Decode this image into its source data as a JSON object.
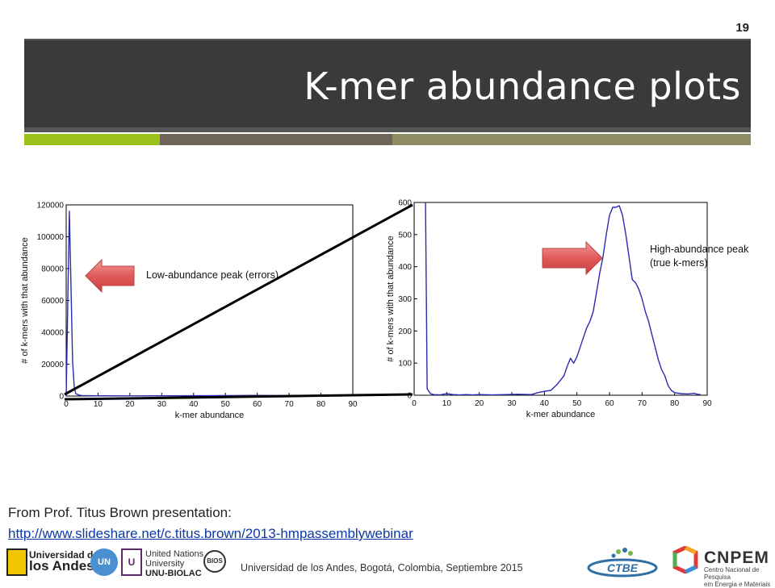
{
  "slide": {
    "page_number": "19",
    "title": "K-mer abundance plots",
    "colors": {
      "title_bar": "#3a3a3a",
      "band_green": "#9ac21a",
      "band_brown": "#6e6457",
      "band_olive": "#8c8c60",
      "accent_blue": "#2b2bb0",
      "arrow_red": "#e05a5a"
    }
  },
  "annotations": {
    "low_peak": "Low-abundance peak (errors)",
    "high_peak_line1": "High-abundance peak",
    "high_peak_line2": "(true k-mers)"
  },
  "credit": {
    "text": "From Prof. Titus Brown presentation:",
    "link": "http://www.slideshare.net/c.titus.brown/2013-hmpassemblywebinar"
  },
  "footer": {
    "text": "Universidad de los Andes, Bogotá, Colombia, Septiembre 2015",
    "logos": {
      "uandes_line1": "Universidad de",
      "uandes_line2": "los Andes",
      "un": "UN",
      "unu_mark": "U",
      "unu_line1": "United Nations",
      "unu_line2": "University",
      "unu_line3": "UNU-BIOLAC",
      "bios": "BIOS",
      "ctbe": "CTBE",
      "cnpem": "CNPEM",
      "cnpem_sub1": "Centro Nacional de Pesquisa",
      "cnpem_sub2": "em Energia e Materiais"
    }
  },
  "chart_data": [
    {
      "type": "line",
      "xlabel": "k-mer abundance",
      "ylabel": "# of k-mers with that abundance",
      "xlim": [
        0,
        90
      ],
      "ylim": [
        0,
        120000
      ],
      "xticks": [
        "0",
        "10",
        "20",
        "30",
        "40",
        "50",
        "60",
        "70",
        "80",
        "90"
      ],
      "yticks": [
        "0",
        "20000",
        "40000",
        "60000",
        "80000",
        "100000",
        "120000"
      ],
      "series": [
        {
          "x": [
            0,
            0.5,
            1,
            1.5,
            2,
            2.5,
            3,
            4,
            5,
            10,
            20,
            40,
            60,
            88
          ],
          "y": [
            0,
            60000,
            116000,
            70000,
            22000,
            6000,
            1500,
            600,
            300,
            150,
            100,
            200,
            400,
            100
          ]
        }
      ]
    },
    {
      "type": "line",
      "xlabel": "k-mer abundance",
      "ylabel": "# of k-mers with that abundance",
      "xlim": [
        0,
        90
      ],
      "ylim": [
        0,
        600
      ],
      "xticks": [
        "0",
        "10",
        "20",
        "30",
        "40",
        "50",
        "60",
        "70",
        "80",
        "90"
      ],
      "yticks": [
        "0",
        "100",
        "200",
        "300",
        "400",
        "500",
        "600"
      ],
      "series": [
        {
          "x": [
            3.5,
            4,
            5,
            6,
            8,
            10,
            12,
            14,
            16,
            18,
            20,
            24,
            28,
            32,
            36,
            38,
            40,
            42,
            44,
            46,
            47,
            48,
            49,
            50,
            51,
            52,
            53,
            54,
            55,
            56,
            57,
            58,
            59,
            60,
            61,
            62,
            63,
            64,
            65,
            66,
            67,
            68,
            69,
            70,
            71,
            72,
            73,
            74,
            75,
            76,
            77,
            78,
            79,
            80,
            82,
            84,
            86,
            87,
            88
          ],
          "y": [
            600,
            20,
            5,
            2,
            1,
            5,
            2,
            1,
            2,
            1,
            2,
            1,
            2,
            3,
            2,
            8,
            12,
            15,
            35,
            60,
            90,
            115,
            100,
            120,
            150,
            180,
            210,
            230,
            260,
            320,
            380,
            430,
            500,
            560,
            585,
            585,
            590,
            560,
            500,
            430,
            360,
            350,
            330,
            300,
            260,
            230,
            190,
            150,
            110,
            80,
            60,
            30,
            15,
            8,
            5,
            4,
            6,
            3,
            2
          ]
        }
      ]
    }
  ]
}
